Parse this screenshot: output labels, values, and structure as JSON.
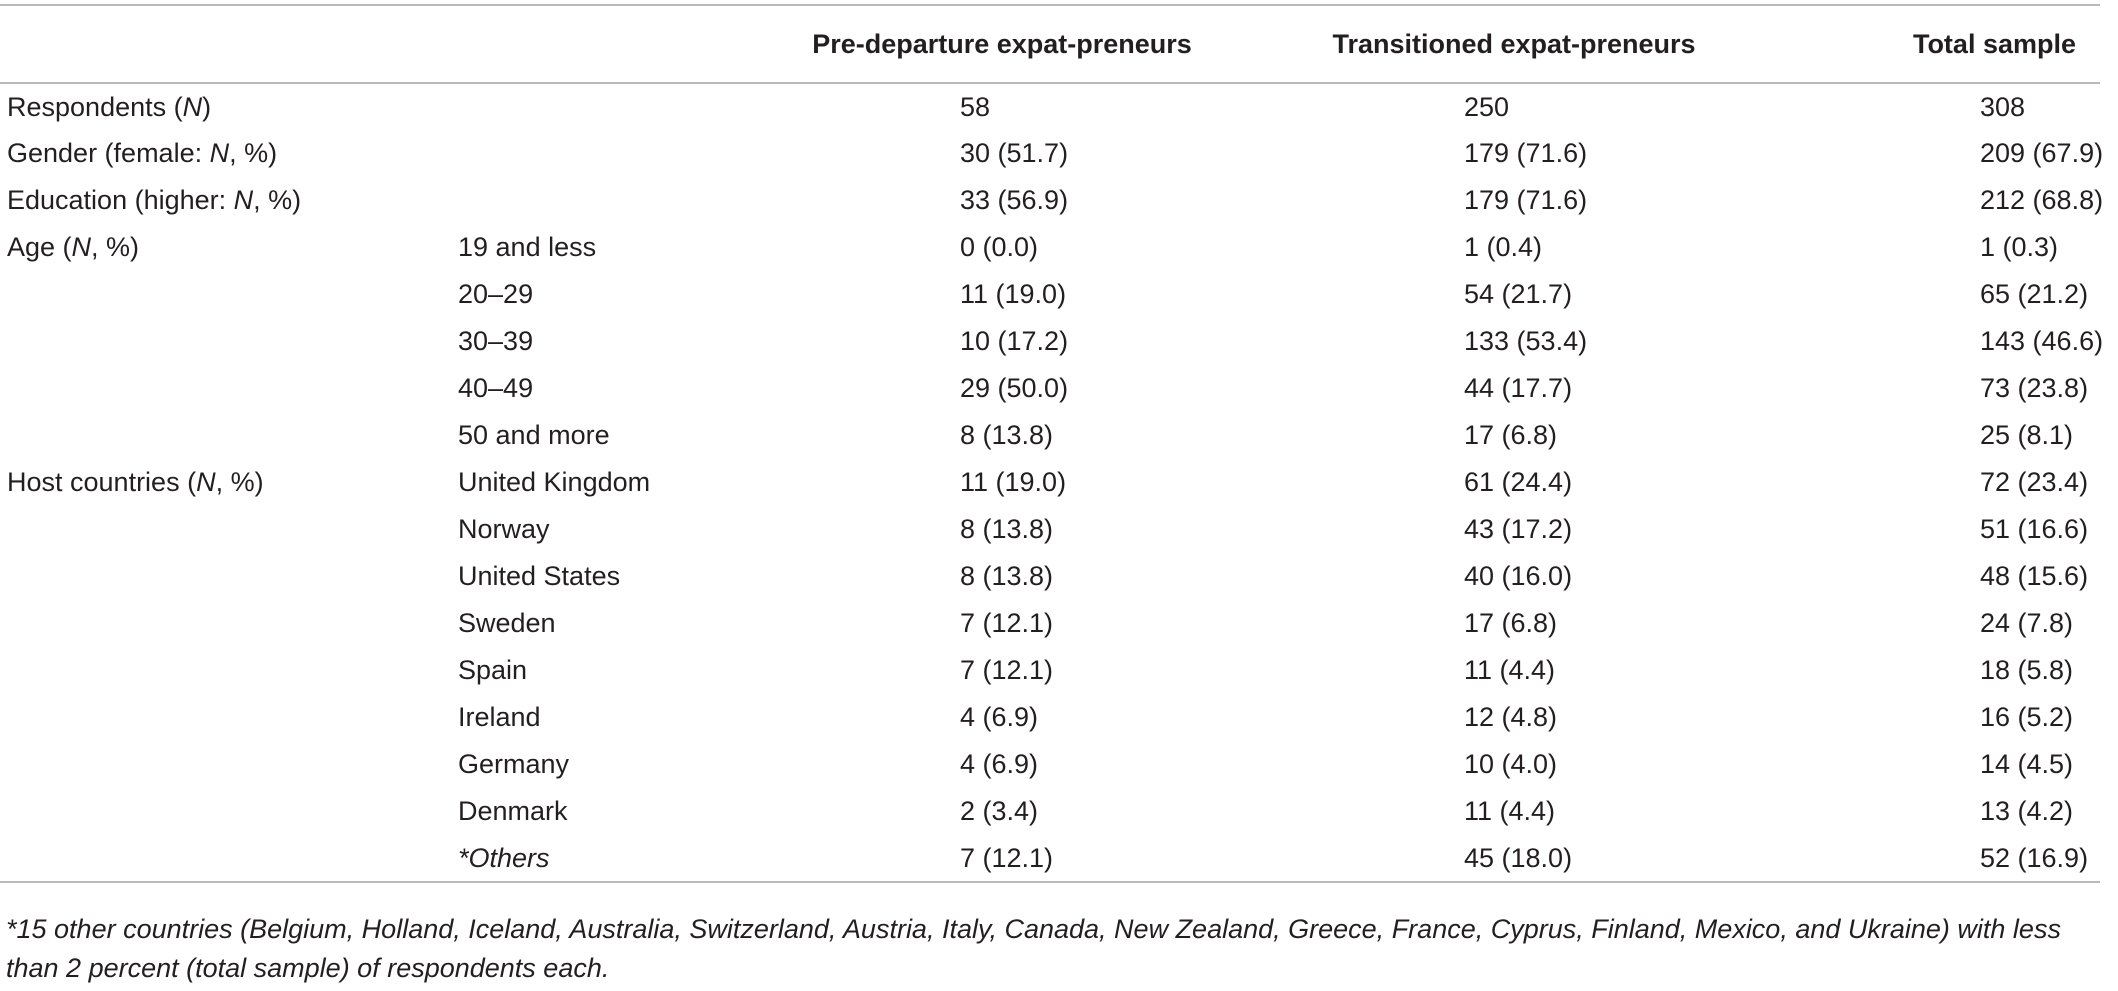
{
  "table": {
    "headers": [
      "",
      "",
      "Pre-departure expat-preneurs",
      "Transitioned expat-preneurs",
      "Total sample"
    ],
    "rows": [
      {
        "label": "Respondents (",
        "label_ital": "N",
        "label_end": ")",
        "sub": "",
        "pre": "58",
        "trans": "250",
        "total": "308"
      },
      {
        "label": "Gender (female: ",
        "label_ital": "N",
        "label_end": ", %)",
        "sub": "",
        "pre": "30 (51.7)",
        "trans": "179 (71.6)",
        "total": "209 (67.9)"
      },
      {
        "label": "Education (higher: ",
        "label_ital": "N",
        "label_end": ", %)",
        "sub": "",
        "pre": "33 (56.9)",
        "trans": "179 (71.6)",
        "total": "212 (68.8)"
      },
      {
        "label": "Age (",
        "label_ital": "N",
        "label_end": ", %)",
        "sub": "19 and less",
        "pre": "0 (0.0)",
        "trans": "1 (0.4)",
        "total": "1 (0.3)"
      },
      {
        "label": "",
        "label_ital": "",
        "label_end": "",
        "sub": "20–29",
        "pre": "11 (19.0)",
        "trans": "54 (21.7)",
        "total": "65 (21.2)"
      },
      {
        "label": "",
        "label_ital": "",
        "label_end": "",
        "sub": "30–39",
        "pre": "10 (17.2)",
        "trans": "133 (53.4)",
        "total": "143 (46.6)"
      },
      {
        "label": "",
        "label_ital": "",
        "label_end": "",
        "sub": "40–49",
        "pre": "29 (50.0)",
        "trans": "44 (17.7)",
        "total": "73 (23.8)"
      },
      {
        "label": "",
        "label_ital": "",
        "label_end": "",
        "sub": "50 and more",
        "pre": "8 (13.8)",
        "trans": "17 (6.8)",
        "total": "25 (8.1)"
      },
      {
        "label": "Host countries (",
        "label_ital": "N",
        "label_end": ", %)",
        "sub": "United Kingdom",
        "pre": "11 (19.0)",
        "trans": "61 (24.4)",
        "total": "72 (23.4)"
      },
      {
        "label": "",
        "label_ital": "",
        "label_end": "",
        "sub": "Norway",
        "pre": "8 (13.8)",
        "trans": "43 (17.2)",
        "total": "51 (16.6)"
      },
      {
        "label": "",
        "label_ital": "",
        "label_end": "",
        "sub": "United States",
        "pre": "8 (13.8)",
        "trans": "40 (16.0)",
        "total": "48 (15.6)"
      },
      {
        "label": "",
        "label_ital": "",
        "label_end": "",
        "sub": "Sweden",
        "pre": "7 (12.1)",
        "trans": "17 (6.8)",
        "total": "24 (7.8)"
      },
      {
        "label": "",
        "label_ital": "",
        "label_end": "",
        "sub": "Spain",
        "pre": "7 (12.1)",
        "trans": "11 (4.4)",
        "total": "18 (5.8)"
      },
      {
        "label": "",
        "label_ital": "",
        "label_end": "",
        "sub": "Ireland",
        "pre": "4 (6.9)",
        "trans": "12 (4.8)",
        "total": "16 (5.2)"
      },
      {
        "label": "",
        "label_ital": "",
        "label_end": "",
        "sub": "Germany",
        "pre": "4 (6.9)",
        "trans": "10 (4.0)",
        "total": "14 (4.5)"
      },
      {
        "label": "",
        "label_ital": "",
        "label_end": "",
        "sub": "Denmark",
        "pre": "2 (3.4)",
        "trans": "11 (4.4)",
        "total": "13 (4.2)"
      },
      {
        "label": "",
        "label_ital": "",
        "label_end": "",
        "sub": "*Others",
        "sub_italic": true,
        "pre": "7 (12.1)",
        "trans": "45 (18.0)",
        "total": "52 (16.9)"
      }
    ]
  },
  "footnote": "*15 other countries (Belgium, Holland, Iceland, Australia, Switzerland, Austria, Italy, Canada, New Zealand, Greece, France, Cyprus, Finland, Mexico, and Ukraine) with less than 2 percent (total sample) of respondents each."
}
